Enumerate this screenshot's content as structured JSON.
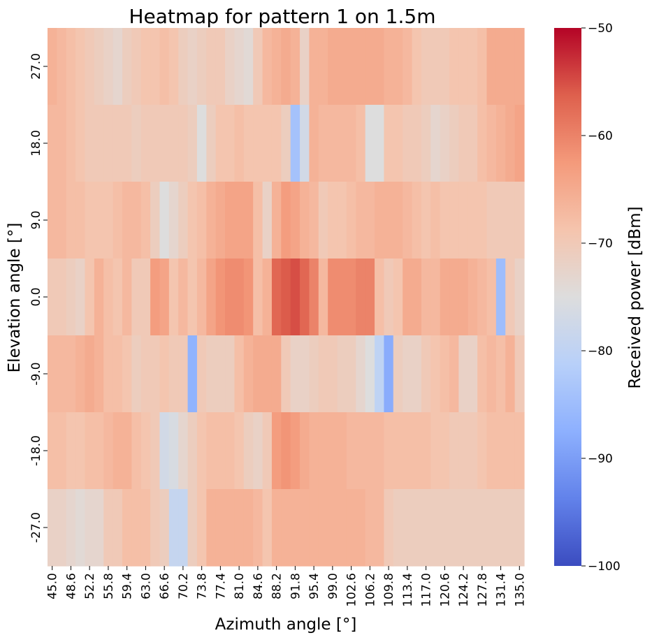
{
  "chart_data": {
    "type": "heatmap",
    "title": "Heatmap for pattern 1 on 1.5m",
    "xlabel": "Azimuth angle [°]",
    "ylabel": "Elevation angle [°]",
    "colorbar_label": "Received power [dBm]",
    "colormap": "coolwarm",
    "vmin": -100,
    "vmax": -50,
    "colorbar_ticks": [
      "−50",
      "−60",
      "−70",
      "−80",
      "−90",
      "−100"
    ],
    "colorbar_tick_values": [
      -50,
      -60,
      -70,
      -80,
      -90,
      -100
    ],
    "x_values": [
      45.0,
      46.8,
      48.6,
      50.4,
      52.2,
      54.0,
      55.8,
      57.6,
      59.4,
      61.2,
      63.0,
      64.8,
      66.6,
      68.4,
      70.2,
      72.0,
      73.8,
      75.6,
      77.4,
      79.2,
      81.0,
      82.8,
      84.6,
      86.4,
      88.2,
      90.0,
      91.8,
      93.6,
      95.4,
      97.2,
      99.0,
      100.8,
      102.6,
      104.4,
      106.2,
      108.0,
      109.8,
      111.6,
      113.4,
      115.2,
      117.0,
      118.8,
      120.6,
      122.4,
      124.2,
      126.0,
      127.8,
      129.6,
      131.4,
      133.2,
      135.0
    ],
    "x_tick_labels": [
      "45.0",
      "48.6",
      "52.2",
      "55.8",
      "59.4",
      "63.0",
      "66.6",
      "70.2",
      "73.8",
      "77.4",
      "81.0",
      "84.6",
      "88.2",
      "91.8",
      "95.4",
      "99.0",
      "102.6",
      "106.2",
      "109.8",
      "113.4",
      "117.0",
      "120.6",
      "124.2",
      "127.8",
      "131.4",
      "135.0"
    ],
    "y_tick_labels": [
      "27.0",
      "18.0",
      "9.0",
      "0.0",
      "-9.0",
      "-18.0",
      "-27.0"
    ],
    "y_values": [
      27,
      18,
      9,
      0,
      -9,
      -18,
      -27
    ],
    "values": [
      [
        -66,
        -67,
        -68,
        -69,
        -70,
        -71,
        -72,
        -73,
        -71,
        -70,
        -69,
        -69,
        -68,
        -69,
        -71,
        -72,
        -71,
        -70,
        -70,
        -72,
        -73,
        -74,
        -70,
        -67,
        -66,
        -65,
        -66,
        -72,
        -66,
        -66,
        -65,
        -65,
        -65,
        -65,
        -65,
        -65,
        -66,
        -66,
        -67,
        -69,
        -70,
        -70,
        -70,
        -69,
        -69,
        -69,
        -68,
        -65,
        -65,
        -65,
        -65
      ],
      [
        -67,
        -67,
        -68,
        -69,
        -70,
        -70,
        -70,
        -70,
        -70,
        -71,
        -70,
        -70,
        -70,
        -70,
        -70,
        -71,
        -75,
        -71,
        -69,
        -69,
        -68,
        -69,
        -69,
        -69,
        -69,
        -71,
        -84,
        -77,
        -66,
        -67,
        -67,
        -67,
        -67,
        -68,
        -75,
        -75,
        -69,
        -69,
        -70,
        -70,
        -71,
        -73,
        -72,
        -71,
        -70,
        -70,
        -68,
        -67,
        -66,
        -65,
        -64
      ],
      [
        -67,
        -67,
        -68,
        -68,
        -69,
        -69,
        -69,
        -68,
        -67,
        -67,
        -68,
        -71,
        -75,
        -73,
        -71,
        -69,
        -68,
        -66,
        -65,
        -64,
        -64,
        -64,
        -68,
        -72,
        -66,
        -63,
        -64,
        -66,
        -67,
        -70,
        -69,
        -69,
        -68,
        -67,
        -67,
        -66,
        -66,
        -66,
        -67,
        -68,
        -69,
        -68,
        -69,
        -69,
        -69,
        -69,
        -69,
        -70,
        -70,
        -70,
        -70
      ],
      [
        -70,
        -70,
        -71,
        -72,
        -69,
        -66,
        -68,
        -69,
        -67,
        -70,
        -70,
        -63,
        -64,
        -69,
        -67,
        -69,
        -67,
        -64,
        -62,
        -61,
        -61,
        -62,
        -68,
        -66,
        -57,
        -56,
        -55,
        -57,
        -60,
        -67,
        -61,
        -61,
        -61,
        -60,
        -60,
        -68,
        -70,
        -69,
        -65,
        -65,
        -67,
        -67,
        -65,
        -65,
        -65,
        -66,
        -67,
        -68,
        -85,
        -70,
        -72
      ],
      [
        -67,
        -67,
        -67,
        -66,
        -65,
        -66,
        -68,
        -68,
        -69,
        -71,
        -70,
        -70,
        -69,
        -70,
        -70,
        -87,
        -70,
        -71,
        -71,
        -71,
        -68,
        -66,
        -65,
        -65,
        -65,
        -70,
        -72,
        -72,
        -71,
        -70,
        -70,
        -71,
        -71,
        -73,
        -75,
        -80,
        -88,
        -71,
        -72,
        -72,
        -70,
        -69,
        -68,
        -67,
        -72,
        -72,
        -68,
        -67,
        -68,
        -66,
        -70
      ],
      [
        -68,
        -68,
        -69,
        -69,
        -68,
        -68,
        -67,
        -66,
        -66,
        -68,
        -69,
        -70,
        -77,
        -76,
        -73,
        -71,
        -69,
        -68,
        -68,
        -68,
        -69,
        -71,
        -72,
        -70,
        -63,
        -62,
        -63,
        -65,
        -66,
        -66,
        -66,
        -66,
        -67,
        -67,
        -67,
        -67,
        -68,
        -68,
        -68,
        -68,
        -68,
        -69,
        -69,
        -70,
        -70,
        -70,
        -69,
        -68,
        -68,
        -68,
        -68
      ],
      [
        -72,
        -72,
        -73,
        -74,
        -73,
        -73,
        -70,
        -70,
        -68,
        -68,
        -68,
        -70,
        -71,
        -79,
        -79,
        -71,
        -69,
        -66,
        -66,
        -66,
        -66,
        -66,
        -67,
        -69,
        -66,
        -66,
        -66,
        -66,
        -66,
        -66,
        -66,
        -66,
        -66,
        -66,
        -67,
        -67,
        -70,
        -71,
        -71,
        -71,
        -71,
        -71,
        -71,
        -71,
        -71,
        -71,
        -71,
        -71,
        -71,
        -71,
        -71
      ]
    ]
  }
}
